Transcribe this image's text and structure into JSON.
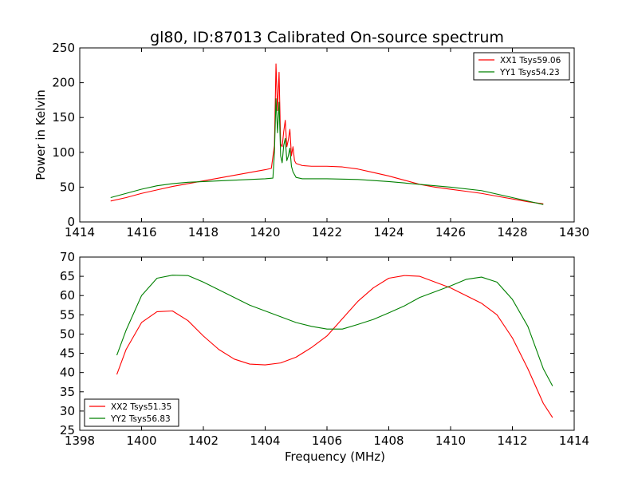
{
  "title": "gl80, ID:87013 Calibrated On-source spectrum",
  "colors": {
    "red": "#ff0000",
    "green": "#008000",
    "axis": "#000000"
  },
  "chart_data": [
    {
      "type": "line",
      "xlabel": "",
      "ylabel": "Power in Kelvin",
      "xlim": [
        1414,
        1430
      ],
      "ylim": [
        0,
        250
      ],
      "xticks": [
        1414,
        1416,
        1418,
        1420,
        1422,
        1424,
        1426,
        1428,
        1430
      ],
      "yticks": [
        0,
        50,
        100,
        150,
        200,
        250
      ],
      "legend_position": "top-right",
      "series": [
        {
          "name": "XX1 Tsys59.06",
          "color": "#ff0000",
          "points": [
            [
              1415.0,
              30
            ],
            [
              1415.5,
              35
            ],
            [
              1416.0,
              41
            ],
            [
              1416.5,
              46
            ],
            [
              1417.0,
              51
            ],
            [
              1417.5,
              55
            ],
            [
              1418.0,
              59
            ],
            [
              1418.5,
              63
            ],
            [
              1419.0,
              67
            ],
            [
              1419.5,
              71
            ],
            [
              1420.0,
              75
            ],
            [
              1420.2,
              77
            ],
            [
              1420.3,
              110
            ],
            [
              1420.35,
              227
            ],
            [
              1420.4,
              160
            ],
            [
              1420.45,
              215
            ],
            [
              1420.5,
              112
            ],
            [
              1420.55,
              108
            ],
            [
              1420.6,
              130
            ],
            [
              1420.65,
              146
            ],
            [
              1420.7,
              108
            ],
            [
              1420.75,
              118
            ],
            [
              1420.8,
              133
            ],
            [
              1420.85,
              95
            ],
            [
              1420.9,
              108
            ],
            [
              1420.95,
              88
            ],
            [
              1421.0,
              84
            ],
            [
              1421.2,
              81
            ],
            [
              1421.5,
              80
            ],
            [
              1422.0,
              80
            ],
            [
              1422.5,
              79
            ],
            [
              1423.0,
              76
            ],
            [
              1423.5,
              71
            ],
            [
              1424.0,
              66
            ],
            [
              1424.5,
              60
            ],
            [
              1425.0,
              54
            ],
            [
              1425.5,
              50
            ],
            [
              1426.0,
              47
            ],
            [
              1426.5,
              44
            ],
            [
              1427.0,
              41
            ],
            [
              1427.5,
              37
            ],
            [
              1428.0,
              33
            ],
            [
              1428.5,
              29
            ],
            [
              1429.0,
              26
            ]
          ]
        },
        {
          "name": "YY1 Tsys54.23",
          "color": "#008000",
          "points": [
            [
              1415.0,
              35
            ],
            [
              1415.5,
              41
            ],
            [
              1416.0,
              47
            ],
            [
              1416.5,
              52
            ],
            [
              1417.0,
              55
            ],
            [
              1417.5,
              57
            ],
            [
              1418.0,
              58
            ],
            [
              1418.5,
              59
            ],
            [
              1419.0,
              60
            ],
            [
              1419.5,
              61
            ],
            [
              1420.0,
              62
            ],
            [
              1420.25,
              63
            ],
            [
              1420.3,
              100
            ],
            [
              1420.35,
              177
            ],
            [
              1420.4,
              128
            ],
            [
              1420.45,
              172
            ],
            [
              1420.5,
              95
            ],
            [
              1420.55,
              85
            ],
            [
              1420.6,
              110
            ],
            [
              1420.65,
              120
            ],
            [
              1420.7,
              88
            ],
            [
              1420.75,
              95
            ],
            [
              1420.8,
              106
            ],
            [
              1420.85,
              80
            ],
            [
              1420.9,
              72
            ],
            [
              1421.0,
              64
            ],
            [
              1421.2,
              62
            ],
            [
              1422.0,
              62
            ],
            [
              1423.0,
              61
            ],
            [
              1424.0,
              58
            ],
            [
              1425.0,
              54
            ],
            [
              1426.0,
              50
            ],
            [
              1427.0,
              45
            ],
            [
              1428.0,
              35
            ],
            [
              1429.0,
              25
            ]
          ]
        }
      ]
    },
    {
      "type": "line",
      "xlabel": "Frequency (MHz)",
      "ylabel": "",
      "xlim": [
        1398,
        1414
      ],
      "ylim": [
        25,
        70
      ],
      "xticks": [
        1398,
        1400,
        1402,
        1404,
        1406,
        1408,
        1410,
        1412,
        1414
      ],
      "yticks": [
        25,
        30,
        35,
        40,
        45,
        50,
        55,
        60,
        65,
        70
      ],
      "legend_position": "bottom-left",
      "series": [
        {
          "name": "XX2 Tsys51.35",
          "color": "#ff0000",
          "points": [
            [
              1399.2,
              39.5
            ],
            [
              1399.5,
              46
            ],
            [
              1400.0,
              53
            ],
            [
              1400.5,
              55.8
            ],
            [
              1401.0,
              56
            ],
            [
              1401.5,
              53.5
            ],
            [
              1402.0,
              49.5
            ],
            [
              1402.5,
              46
            ],
            [
              1403.0,
              43.5
            ],
            [
              1403.5,
              42.2
            ],
            [
              1404.0,
              42
            ],
            [
              1404.5,
              42.5
            ],
            [
              1405.0,
              44
            ],
            [
              1405.5,
              46.5
            ],
            [
              1406.0,
              49.5
            ],
            [
              1406.5,
              54
            ],
            [
              1407.0,
              58.5
            ],
            [
              1407.5,
              62
            ],
            [
              1408.0,
              64.5
            ],
            [
              1408.5,
              65.2
            ],
            [
              1409.0,
              65
            ],
            [
              1409.5,
              63.5
            ],
            [
              1410.0,
              62
            ],
            [
              1410.5,
              60
            ],
            [
              1411.0,
              58
            ],
            [
              1411.5,
              55
            ],
            [
              1412.0,
              49
            ],
            [
              1412.5,
              41
            ],
            [
              1413.0,
              32
            ],
            [
              1413.3,
              28.3
            ]
          ]
        },
        {
          "name": "YY2 Tsys56.83",
          "color": "#008000",
          "points": [
            [
              1399.2,
              44.5
            ],
            [
              1399.5,
              51
            ],
            [
              1400.0,
              60
            ],
            [
              1400.5,
              64.5
            ],
            [
              1401.0,
              65.3
            ],
            [
              1401.5,
              65.2
            ],
            [
              1402.0,
              63.5
            ],
            [
              1402.5,
              61.5
            ],
            [
              1403.0,
              59.5
            ],
            [
              1403.5,
              57.5
            ],
            [
              1404.0,
              56
            ],
            [
              1404.5,
              54.5
            ],
            [
              1405.0,
              53
            ],
            [
              1405.5,
              52
            ],
            [
              1406.0,
              51.3
            ],
            [
              1406.5,
              51.3
            ],
            [
              1407.0,
              52.5
            ],
            [
              1407.5,
              53.8
            ],
            [
              1408.0,
              55.5
            ],
            [
              1408.5,
              57.3
            ],
            [
              1409.0,
              59.5
            ],
            [
              1409.5,
              61
            ],
            [
              1410.0,
              62.5
            ],
            [
              1410.5,
              64.2
            ],
            [
              1411.0,
              64.8
            ],
            [
              1411.5,
              63.5
            ],
            [
              1412.0,
              59
            ],
            [
              1412.5,
              52
            ],
            [
              1413.0,
              41
            ],
            [
              1413.3,
              36.5
            ]
          ]
        }
      ]
    }
  ]
}
